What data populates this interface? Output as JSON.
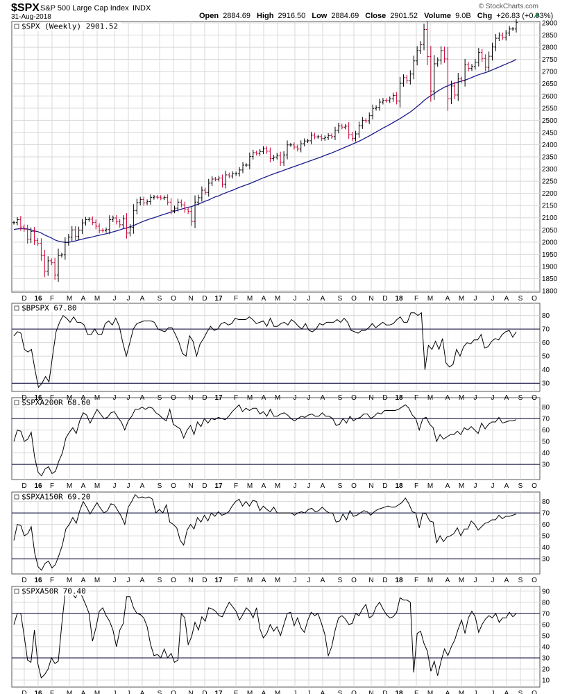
{
  "header": {
    "symbol": "$SPX",
    "name": "S&P 500 Large Cap Index",
    "exchange": "INDX",
    "date": "31-Aug-2018",
    "brand": "© StockCharts.com",
    "ohlc": {
      "open_label": "Open",
      "open": "2884.69",
      "high_label": "High",
      "high": "2916.50",
      "low_label": "Low",
      "low": "2884.69",
      "close_label": "Close",
      "close": "2901.52",
      "volume_label": "Volume",
      "volume": "9.0B",
      "chg_label": "Chg",
      "chg": "+26.83 (+0.93%)"
    }
  },
  "colors": {
    "up_bar": "#000000",
    "down_bar": "#cc0033",
    "moving_average": "#1c1c8c",
    "grid": "#d8d8d8",
    "indicator_line": "#000000",
    "reference_line": "#000033"
  },
  "x_axis_labels": [
    "D",
    "16",
    "F",
    "M",
    "A",
    "M",
    "J",
    "J",
    "A",
    "S",
    "O",
    "N",
    "D",
    "17",
    "F",
    "M",
    "A",
    "M",
    "J",
    "J",
    "A",
    "S",
    "O",
    "N",
    "D",
    "18",
    "F",
    "M",
    "A",
    "M",
    "J",
    "J",
    "A",
    "S",
    "O"
  ],
  "x_axis_bold": [
    "16",
    "17",
    "18"
  ],
  "chart_data": [
    {
      "type": "ohlc",
      "title": "$SPX (Weekly) 2901.52",
      "ylim": [
        1800,
        2900
      ],
      "yticks": [
        1800,
        1850,
        1900,
        1950,
        2000,
        2050,
        2100,
        2150,
        2200,
        2250,
        2300,
        2350,
        2400,
        2450,
        2500,
        2550,
        2600,
        2650,
        2700,
        2750,
        2800,
        2850,
        2900
      ],
      "close": [
        2080,
        2092,
        2062,
        2053,
        2012,
        2044,
        2006,
        1995,
        1944,
        1880,
        1923,
        1915,
        1865,
        1945,
        1948,
        1999,
        2020,
        2050,
        2023,
        2049,
        2079,
        2092,
        2094,
        2081,
        2065,
        2048,
        2047,
        2051,
        2092,
        2099,
        2084,
        2071,
        2096,
        2037,
        2060,
        2130,
        2162,
        2175,
        2161,
        2166,
        2183,
        2185,
        2184,
        2181,
        2183,
        2164,
        2129,
        2139,
        2164,
        2153,
        2133,
        2126,
        2085,
        2164,
        2182,
        2213,
        2204,
        2242,
        2259,
        2258,
        2263,
        2238,
        2276,
        2271,
        2280,
        2281,
        2296,
        2316,
        2316,
        2351,
        2367,
        2364,
        2372,
        2383,
        2373,
        2343,
        2349,
        2356,
        2328,
        2358,
        2399,
        2399,
        2390,
        2382,
        2404,
        2415,
        2416,
        2439,
        2432,
        2433,
        2425,
        2429,
        2437,
        2433,
        2459,
        2477,
        2472,
        2476,
        2441,
        2426,
        2444,
        2478,
        2500,
        2498,
        2519,
        2549,
        2553,
        2575,
        2582,
        2581,
        2588,
        2602,
        2579,
        2652,
        2675,
        2662,
        2690,
        2744,
        2786,
        2811,
        2873,
        2762,
        2620,
        2732,
        2747,
        2786,
        2752,
        2588,
        2641,
        2604,
        2670,
        2663,
        2728,
        2713,
        2721,
        2739,
        2779,
        2754,
        2718,
        2763,
        2801,
        2837,
        2850,
        2840,
        2858,
        2875,
        2875,
        2901
      ],
      "ma40": [
        2052,
        2054,
        2055,
        2055,
        2054,
        2050,
        2046,
        2043,
        2037,
        2029,
        2023,
        2017,
        2009,
        2004,
        2001,
        1999,
        1999,
        2002,
        2005,
        2009,
        2012,
        2016,
        2018,
        2021,
        2025,
        2028,
        2031,
        2034,
        2038,
        2042,
        2046,
        2050,
        2055,
        2058,
        2063,
        2068,
        2074,
        2080,
        2086,
        2091,
        2096,
        2100,
        2105,
        2110,
        2114,
        2119,
        2123,
        2127,
        2131,
        2135,
        2139,
        2143,
        2146,
        2151,
        2156,
        2162,
        2168,
        2173,
        2180,
        2186,
        2190,
        2197,
        2202,
        2208,
        2213,
        2219,
        2225,
        2230,
        2235,
        2240,
        2246,
        2252,
        2258,
        2264,
        2269,
        2275,
        2280,
        2285,
        2290,
        2295,
        2300,
        2305,
        2310,
        2315,
        2320,
        2325,
        2330,
        2335,
        2340,
        2345,
        2350,
        2356,
        2361,
        2366,
        2372,
        2378,
        2384,
        2390,
        2396,
        2402,
        2408,
        2414,
        2421,
        2429,
        2436,
        2444,
        2452,
        2460,
        2468,
        2475,
        2483,
        2491,
        2499,
        2507,
        2516,
        2525,
        2534,
        2545,
        2557,
        2568,
        2581,
        2592,
        2601,
        2610,
        2620,
        2628,
        2636,
        2642,
        2648,
        2653,
        2657,
        2661,
        2665,
        2670,
        2676,
        2682,
        2687,
        2692,
        2696,
        2701,
        2707,
        2713,
        2719,
        2725,
        2731,
        2737,
        2743,
        2750
      ]
    },
    {
      "type": "line",
      "title": "$BPSPX 67.80",
      "ylim": [
        25,
        88
      ],
      "yticks": [
        30,
        40,
        50,
        60,
        70,
        80
      ],
      "reference_lines": [
        30,
        70
      ],
      "values": [
        65,
        68,
        67,
        55,
        53,
        55,
        40,
        27,
        30,
        35,
        31,
        50,
        68,
        75,
        80,
        78,
        75,
        79,
        75,
        75,
        73,
        66,
        66,
        70,
        66,
        66,
        74,
        76,
        73,
        78,
        72,
        60,
        50,
        60,
        70,
        74,
        75,
        76,
        76,
        76,
        75,
        70,
        69,
        68,
        71,
        71,
        66,
        60,
        52,
        50,
        65,
        61,
        50,
        59,
        63,
        68,
        72,
        69,
        70,
        74,
        75,
        73,
        74,
        78,
        77,
        77,
        77,
        79,
        77,
        74,
        75,
        76,
        72,
        78,
        72,
        72,
        74,
        75,
        73,
        77,
        75,
        72,
        70,
        74,
        69,
        68,
        70,
        74,
        73,
        75,
        75,
        75,
        77,
        75,
        78,
        75,
        69,
        68,
        67,
        69,
        69,
        71,
        74,
        71,
        73,
        75,
        73,
        73,
        74,
        77,
        79,
        75,
        75,
        82,
        82,
        80,
        82,
        40,
        58,
        55,
        61,
        55,
        63,
        45,
        42,
        44,
        55,
        50,
        57,
        60,
        59,
        62,
        62,
        66,
        56,
        57,
        61,
        63,
        62,
        66,
        68,
        69,
        64,
        68
      ]
    },
    {
      "type": "line",
      "title": "$SPXA200R 68.60",
      "ylim": [
        18,
        87
      ],
      "yticks": [
        30,
        40,
        50,
        60,
        70,
        80
      ],
      "reference_lines": [
        30,
        70
      ],
      "values": [
        50,
        60,
        59,
        50,
        52,
        58,
        36,
        23,
        20,
        26,
        28,
        22,
        24,
        33,
        40,
        53,
        58,
        62,
        57,
        68,
        75,
        73,
        66,
        72,
        78,
        74,
        70,
        71,
        75,
        76,
        71,
        67,
        60,
        68,
        72,
        78,
        78,
        80,
        78,
        80,
        79,
        75,
        73,
        70,
        68,
        78,
        65,
        63,
        61,
        53,
        60,
        64,
        56,
        67,
        63,
        70,
        66,
        70,
        69,
        71,
        70,
        69,
        72,
        76,
        79,
        82,
        76,
        79,
        77,
        79,
        79,
        74,
        76,
        72,
        78,
        72,
        72,
        74,
        75,
        73,
        70,
        68,
        70,
        72,
        71,
        73,
        74,
        72,
        72,
        75,
        72,
        72,
        70,
        64,
        65,
        70,
        66,
        72,
        68,
        70,
        71,
        74,
        74,
        70,
        72,
        75,
        74,
        77,
        77,
        77,
        77,
        78,
        80,
        82,
        79,
        73,
        70,
        60,
        70,
        71,
        65,
        62,
        50,
        56,
        52,
        54,
        56,
        56,
        59,
        56,
        62,
        60,
        63,
        60,
        57,
        66,
        61,
        65,
        67,
        67,
        71,
        66,
        67,
        68,
        68,
        69
      ]
    },
    {
      "type": "line",
      "title": "$SPXA150R 69.20",
      "ylim": [
        18,
        87
      ],
      "yticks": [
        30,
        40,
        50,
        60,
        70,
        80
      ],
      "reference_lines": [
        30,
        70
      ],
      "values": [
        46,
        60,
        59,
        50,
        52,
        58,
        35,
        23,
        20,
        26,
        28,
        22,
        25,
        33,
        42,
        56,
        60,
        66,
        61,
        72,
        80,
        75,
        69,
        74,
        79,
        74,
        70,
        72,
        78,
        77,
        72,
        67,
        60,
        75,
        80,
        86,
        83,
        84,
        83,
        84,
        82,
        70,
        73,
        70,
        77,
        62,
        60,
        57,
        46,
        42,
        55,
        60,
        56,
        66,
        62,
        68,
        63,
        70,
        67,
        71,
        68,
        69,
        71,
        76,
        80,
        82,
        76,
        80,
        76,
        81,
        80,
        72,
        76,
        73,
        71,
        75,
        70,
        70,
        70,
        70,
        70,
        68,
        70,
        71,
        70,
        73,
        74,
        71,
        72,
        75,
        72,
        70,
        70,
        62,
        63,
        69,
        64,
        72,
        67,
        68,
        70,
        72,
        71,
        68,
        71,
        73,
        74,
        75,
        76,
        75,
        75,
        77,
        79,
        83,
        78,
        71,
        70,
        57,
        70,
        69,
        63,
        62,
        44,
        50,
        45,
        49,
        50,
        52,
        57,
        50,
        56,
        56,
        63,
        60,
        55,
        58,
        61,
        62,
        64,
        64,
        68,
        65,
        67,
        67,
        68,
        69
      ]
    },
    {
      "type": "line",
      "title": "$SPXA50R 70.40",
      "ylim": [
        5,
        93
      ],
      "yticks": [
        10,
        20,
        30,
        40,
        50,
        60,
        70,
        80,
        90
      ],
      "reference_lines": [
        30,
        70
      ],
      "values": [
        60,
        70,
        70,
        50,
        28,
        26,
        55,
        25,
        12,
        15,
        20,
        30,
        25,
        27,
        60,
        88,
        90,
        88,
        84,
        90,
        85,
        78,
        70,
        45,
        57,
        72,
        75,
        68,
        63,
        55,
        40,
        55,
        61,
        85,
        85,
        75,
        70,
        69,
        66,
        58,
        42,
        32,
        33,
        30,
        38,
        30,
        34,
        26,
        28,
        70,
        66,
        42,
        49,
        62,
        55,
        67,
        63,
        75,
        74,
        72,
        68,
        67,
        74,
        80,
        76,
        72,
        64,
        69,
        75,
        72,
        66,
        75,
        56,
        48,
        52,
        60,
        54,
        58,
        50,
        60,
        70,
        71,
        59,
        66,
        57,
        53,
        64,
        71,
        68,
        70,
        61,
        51,
        32,
        40,
        55,
        66,
        68,
        65,
        60,
        61,
        70,
        68,
        74,
        78,
        66,
        68,
        76,
        80,
        74,
        69,
        66,
        67,
        71,
        84,
        82,
        82,
        80,
        17,
        52,
        54,
        43,
        36,
        18,
        27,
        14,
        27,
        38,
        32,
        40,
        46,
        56,
        64,
        52,
        66,
        72,
        67,
        53,
        60,
        65,
        68,
        66,
        70,
        62,
        66,
        66,
        71,
        67,
        70
      ]
    }
  ]
}
